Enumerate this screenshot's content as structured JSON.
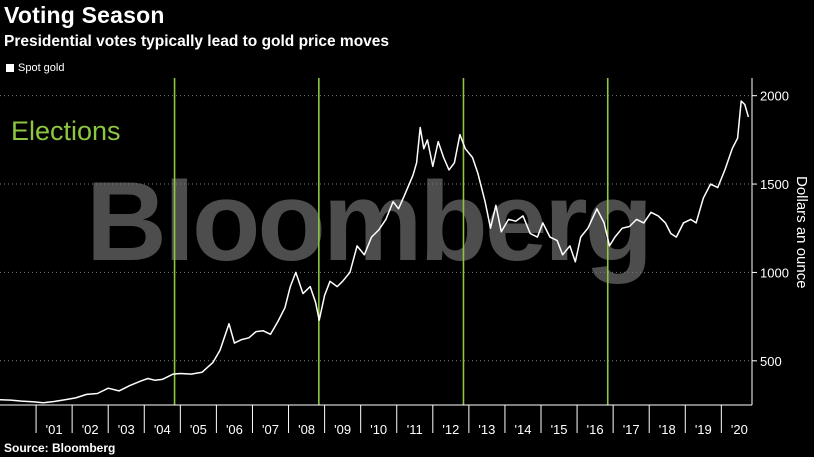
{
  "header": {
    "title": "Voting Season",
    "subtitle": "Presidential votes typically lead to gold price moves",
    "source": "Source: Bloomberg"
  },
  "watermark": "Bloomberg",
  "colors": {
    "line": "#ffffff",
    "election": "#8dc63f",
    "grid": "#7a7a7a",
    "background": "#000000"
  },
  "chart_data": {
    "type": "line",
    "title": "Voting Season",
    "subtitle": "Presidential votes typically lead to gold price moves",
    "ylabel": "Dollars an ounce",
    "xlabel": "",
    "ylim": [
      250,
      2100
    ],
    "xlim": [
      2000.0,
      2020.85
    ],
    "y_axis_position": "right",
    "grid": "horizontal dotted",
    "legend": "top-left",
    "yticks": [
      500,
      1000,
      1500,
      2000
    ],
    "xtick_labels": [
      "'01",
      "'02",
      "'03",
      "'04",
      "'05",
      "'06",
      "'07",
      "'08",
      "'09",
      "'10",
      "'11",
      "'12",
      "'13",
      "'14",
      "'15",
      "'16",
      "'17",
      "'18",
      "'19",
      "'20"
    ],
    "annotations": [
      {
        "text": "Elections",
        "x": [
          2004.84,
          2008.84,
          2012.85,
          2016.85
        ]
      }
    ],
    "series": [
      {
        "name": "Spot gold",
        "points": [
          [
            2000.0,
            280
          ],
          [
            2000.3,
            278
          ],
          [
            2000.6,
            272
          ],
          [
            2000.9,
            268
          ],
          [
            2001.2,
            263
          ],
          [
            2001.5,
            270
          ],
          [
            2001.8,
            280
          ],
          [
            2002.1,
            290
          ],
          [
            2002.4,
            310
          ],
          [
            2002.7,
            315
          ],
          [
            2003.0,
            345
          ],
          [
            2003.3,
            330
          ],
          [
            2003.6,
            360
          ],
          [
            2003.9,
            385
          ],
          [
            2004.1,
            400
          ],
          [
            2004.3,
            390
          ],
          [
            2004.5,
            395
          ],
          [
            2004.8,
            425
          ],
          [
            2005.0,
            428
          ],
          [
            2005.3,
            425
          ],
          [
            2005.6,
            435
          ],
          [
            2005.9,
            490
          ],
          [
            2006.1,
            560
          ],
          [
            2006.35,
            710
          ],
          [
            2006.5,
            600
          ],
          [
            2006.7,
            620
          ],
          [
            2006.9,
            630
          ],
          [
            2007.1,
            665
          ],
          [
            2007.3,
            670
          ],
          [
            2007.5,
            650
          ],
          [
            2007.7,
            720
          ],
          [
            2007.9,
            800
          ],
          [
            2008.05,
            920
          ],
          [
            2008.2,
            1000
          ],
          [
            2008.4,
            880
          ],
          [
            2008.6,
            920
          ],
          [
            2008.75,
            830
          ],
          [
            2008.85,
            730
          ],
          [
            2009.0,
            870
          ],
          [
            2009.15,
            950
          ],
          [
            2009.35,
            920
          ],
          [
            2009.5,
            950
          ],
          [
            2009.7,
            1000
          ],
          [
            2009.9,
            1150
          ],
          [
            2010.1,
            1100
          ],
          [
            2010.3,
            1200
          ],
          [
            2010.5,
            1240
          ],
          [
            2010.7,
            1300
          ],
          [
            2010.9,
            1400
          ],
          [
            2011.05,
            1360
          ],
          [
            2011.2,
            1430
          ],
          [
            2011.45,
            1550
          ],
          [
            2011.55,
            1620
          ],
          [
            2011.65,
            1820
          ],
          [
            2011.75,
            1700
          ],
          [
            2011.85,
            1750
          ],
          [
            2012.0,
            1600
          ],
          [
            2012.15,
            1740
          ],
          [
            2012.3,
            1650
          ],
          [
            2012.45,
            1580
          ],
          [
            2012.6,
            1620
          ],
          [
            2012.75,
            1780
          ],
          [
            2012.9,
            1700
          ],
          [
            2013.1,
            1650
          ],
          [
            2013.25,
            1560
          ],
          [
            2013.45,
            1400
          ],
          [
            2013.6,
            1250
          ],
          [
            2013.75,
            1380
          ],
          [
            2013.9,
            1230
          ],
          [
            2014.1,
            1300
          ],
          [
            2014.3,
            1290
          ],
          [
            2014.5,
            1320
          ],
          [
            2014.7,
            1220
          ],
          [
            2014.9,
            1200
          ],
          [
            2015.05,
            1280
          ],
          [
            2015.25,
            1200
          ],
          [
            2015.45,
            1180
          ],
          [
            2015.6,
            1100
          ],
          [
            2015.8,
            1150
          ],
          [
            2015.95,
            1060
          ],
          [
            2016.1,
            1200
          ],
          [
            2016.3,
            1250
          ],
          [
            2016.55,
            1360
          ],
          [
            2016.75,
            1280
          ],
          [
            2016.9,
            1150
          ],
          [
            2017.05,
            1200
          ],
          [
            2017.25,
            1250
          ],
          [
            2017.45,
            1260
          ],
          [
            2017.65,
            1300
          ],
          [
            2017.85,
            1280
          ],
          [
            2018.05,
            1340
          ],
          [
            2018.25,
            1320
          ],
          [
            2018.45,
            1280
          ],
          [
            2018.6,
            1220
          ],
          [
            2018.75,
            1200
          ],
          [
            2018.95,
            1280
          ],
          [
            2019.15,
            1300
          ],
          [
            2019.3,
            1280
          ],
          [
            2019.5,
            1420
          ],
          [
            2019.7,
            1500
          ],
          [
            2019.9,
            1480
          ],
          [
            2020.1,
            1580
          ],
          [
            2020.3,
            1700
          ],
          [
            2020.45,
            1760
          ],
          [
            2020.55,
            1970
          ],
          [
            2020.65,
            1950
          ],
          [
            2020.75,
            1880
          ]
        ]
      }
    ]
  }
}
